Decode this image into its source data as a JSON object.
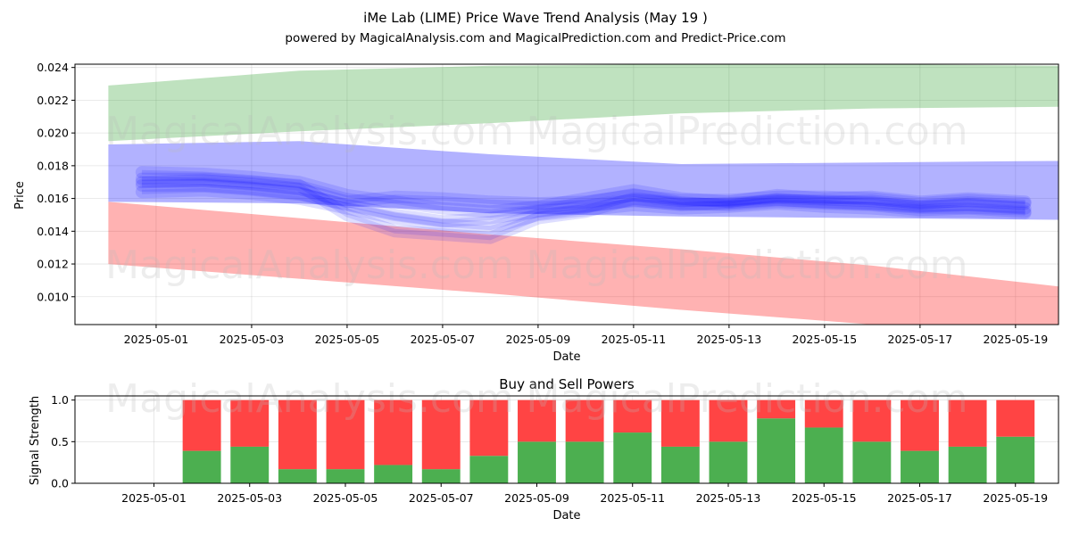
{
  "header": {
    "title": "iMe Lab (LIME) Price Wave Trend Analysis (May 19 )",
    "subtitle": "powered by MagicalAnalysis.com and MagicalPrediction.com and Predict-Price.com"
  },
  "watermarks": {
    "left": "MagicalAnalysis.com",
    "right": "MagicalPrediction.com"
  },
  "colors": {
    "green_band": "#2ca02c",
    "red_band": "#ff0000",
    "blue_band": "#0000ff",
    "buy_bar": "#4caf50",
    "sell_bar": "#ff4444"
  },
  "chart_data": [
    {
      "type": "area",
      "title": "",
      "xlabel": "Date",
      "ylabel": "Price",
      "x_tick_labels": [
        "2025-05-01",
        "2025-05-03",
        "2025-05-05",
        "2025-05-07",
        "2025-05-09",
        "2025-05-11",
        "2025-05-13",
        "2025-05-15",
        "2025-05-17",
        "2025-05-19"
      ],
      "y_tick_labels": [
        "0.010",
        "0.012",
        "0.014",
        "0.016",
        "0.018",
        "0.020",
        "0.022",
        "0.024"
      ],
      "xlim": [
        "2025-04-29.3",
        "2025-05-19.9"
      ],
      "ylim": [
        0.0083,
        0.0242
      ],
      "grid": true,
      "bands": [
        {
          "color": "green",
          "x": [
            "2025-04-30",
            "2025-05-04",
            "2025-05-08",
            "2025-05-12",
            "2025-05-16",
            "2025-05-20"
          ],
          "upper": [
            0.0229,
            0.0238,
            0.0241,
            0.0242,
            0.0242,
            0.0241
          ],
          "lower": [
            0.0195,
            0.0201,
            0.0206,
            0.0212,
            0.0215,
            0.0216
          ]
        },
        {
          "color": "red",
          "x": [
            "2025-04-30",
            "2025-05-04",
            "2025-05-08",
            "2025-05-12",
            "2025-05-16",
            "2025-05-20"
          ],
          "upper": [
            0.0158,
            0.0148,
            0.0138,
            0.0129,
            0.0119,
            0.0106
          ],
          "lower": [
            0.012,
            0.0111,
            0.0102,
            0.0092,
            0.0083,
            0.0075
          ]
        },
        {
          "color": "blue",
          "x": [
            "2025-04-30",
            "2025-05-04",
            "2025-05-08",
            "2025-05-12",
            "2025-05-16",
            "2025-05-20"
          ],
          "upper": [
            0.0193,
            0.0195,
            0.0187,
            0.0181,
            0.0182,
            0.0183
          ],
          "lower": [
            0.0158,
            0.0157,
            0.0151,
            0.0149,
            0.0148,
            0.0147
          ]
        }
      ],
      "wave_lines": {
        "x": [
          "2025-04-30.7",
          "2025-05-02",
          "2025-05-03",
          "2025-05-04",
          "2025-05-05",
          "2025-05-06",
          "2025-05-07",
          "2025-05-08",
          "2025-05-09",
          "2025-05-10",
          "2025-05-11",
          "2025-05-12",
          "2025-05-13",
          "2025-05-14",
          "2025-05-15",
          "2025-05-16",
          "2025-05-17",
          "2025-05-18",
          "2025-05-19.2"
        ],
        "series": [
          {
            "values": [
              0.0168,
              0.0168,
              0.0166,
              0.0163,
              0.0156,
              0.015,
              0.0146,
              0.0148,
              0.0152,
              0.0155,
              0.0159,
              0.0156,
              0.0157,
              0.0159,
              0.0158,
              0.0157,
              0.0155,
              0.0156,
              0.0154
            ]
          },
          {
            "values": [
              0.0172,
              0.0172,
              0.017,
              0.0168,
              0.015,
              0.014,
              0.0138,
              0.0136,
              0.0148,
              0.0152,
              0.016,
              0.0157,
              0.0156,
              0.0158,
              0.0157,
              0.0156,
              0.0153,
              0.0154,
              0.0152
            ]
          },
          {
            "values": [
              0.0176,
              0.0175,
              0.0173,
              0.017,
              0.0162,
              0.0158,
              0.0154,
              0.0152,
              0.0155,
              0.016,
              0.0165,
              0.016,
              0.0158,
              0.0162,
              0.016,
              0.0161,
              0.0158,
              0.016,
              0.0158
            ]
          },
          {
            "values": [
              0.0164,
              0.0165,
              0.0163,
              0.016,
              0.0154,
              0.0148,
              0.0144,
              0.0142,
              0.015,
              0.0153,
              0.0156,
              0.0154,
              0.0155,
              0.0157,
              0.0155,
              0.0154,
              0.0152,
              0.0152,
              0.0151
            ]
          },
          {
            "values": [
              0.017,
              0.0171,
              0.0169,
              0.0166,
              0.0158,
              0.0161,
              0.016,
              0.0158,
              0.0157,
              0.0158,
              0.0162,
              0.0159,
              0.0159,
              0.0161,
              0.0161,
              0.016,
              0.0157,
              0.0159,
              0.0157
            ]
          }
        ]
      }
    },
    {
      "type": "bar",
      "title": "Buy and Sell Powers",
      "xlabel": "Date",
      "ylabel": "Signal Strength",
      "x_tick_labels": [
        "2025-05-01",
        "2025-05-03",
        "2025-05-05",
        "2025-05-07",
        "2025-05-09",
        "2025-05-11",
        "2025-05-13",
        "2025-05-15",
        "2025-05-17",
        "2025-05-19"
      ],
      "y_tick_labels": [
        "0.0",
        "0.5",
        "1.0"
      ],
      "ylim": [
        0,
        1.05
      ],
      "grid": true,
      "categories": [
        "2025-05-02",
        "2025-05-03",
        "2025-05-04",
        "2025-05-05",
        "2025-05-06",
        "2025-05-07",
        "2025-05-08",
        "2025-05-09",
        "2025-05-10",
        "2025-05-11",
        "2025-05-12",
        "2025-05-13",
        "2025-05-14",
        "2025-05-15",
        "2025-05-16",
        "2025-05-17",
        "2025-05-18",
        "2025-05-19"
      ],
      "series": [
        {
          "values": [
            0.39,
            0.44,
            0.17,
            0.17,
            0.22,
            0.17,
            0.33,
            0.5,
            0.5,
            0.61,
            0.44,
            0.5,
            0.78,
            0.67,
            0.5,
            0.39,
            0.44,
            0.56
          ]
        },
        {
          "values": [
            0.61,
            0.56,
            0.83,
            0.83,
            0.78,
            0.83,
            0.67,
            0.5,
            0.5,
            0.39,
            0.56,
            0.5,
            0.22,
            0.33,
            0.5,
            0.61,
            0.56,
            0.44
          ]
        }
      ]
    }
  ]
}
